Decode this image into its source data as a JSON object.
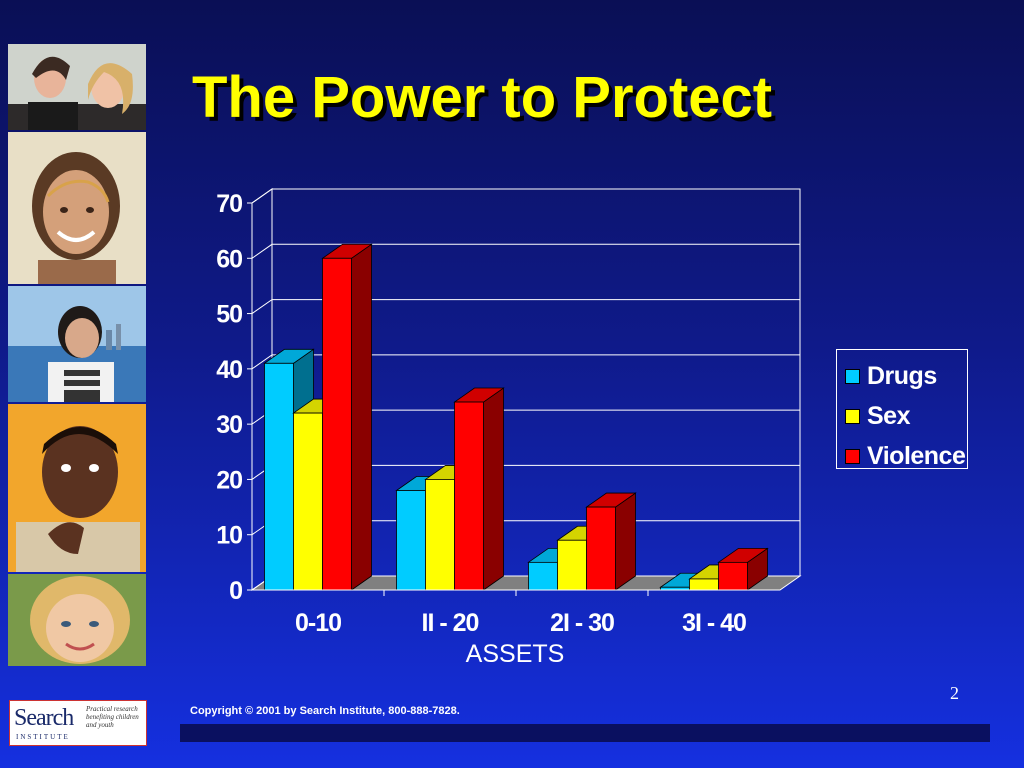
{
  "slide": {
    "title": "The Power to Protect",
    "page_number": "2",
    "copyright": "Copyright © 2001 by Search Institute, 800-888-7828.",
    "logo": {
      "word": "Search",
      "subtitle": "INSTITUTE",
      "tagline": "Practical research benefiting children and youth"
    }
  },
  "chart_data": {
    "type": "bar",
    "style": "3d-clustered",
    "categories": [
      "0-10",
      "II - 20",
      "2I - 30",
      "3I - 40"
    ],
    "series": [
      {
        "name": "Drugs",
        "values": [
          41,
          18,
          5,
          0.5
        ],
        "color": "#00ccff",
        "dark": "#006f8f",
        "top": "#00a8d8"
      },
      {
        "name": "Sex",
        "values": [
          32,
          20,
          9,
          2
        ],
        "color": "#ffff00",
        "dark": "#8c8c00",
        "top": "#d4d400"
      },
      {
        "name": "Violence",
        "values": [
          60,
          34,
          15,
          5
        ],
        "color": "#ff0000",
        "dark": "#8a0000",
        "top": "#d00000"
      }
    ],
    "y_ticks": [
      "0",
      "10",
      "20",
      "30",
      "40",
      "50",
      "60",
      "70"
    ],
    "ylim": [
      0,
      70
    ],
    "xlabel": "ASSETS",
    "legend_position": "right",
    "grid": true
  },
  "colors": {
    "title": "#ffff00",
    "background_top": "#0a0f55",
    "background_bottom": "#1530e0"
  },
  "photos": [
    "teen-couple-photo",
    "smiling-girl-photo",
    "girl-waterfront-photo",
    "thinking-boy-photo",
    "young-girl-photo"
  ]
}
